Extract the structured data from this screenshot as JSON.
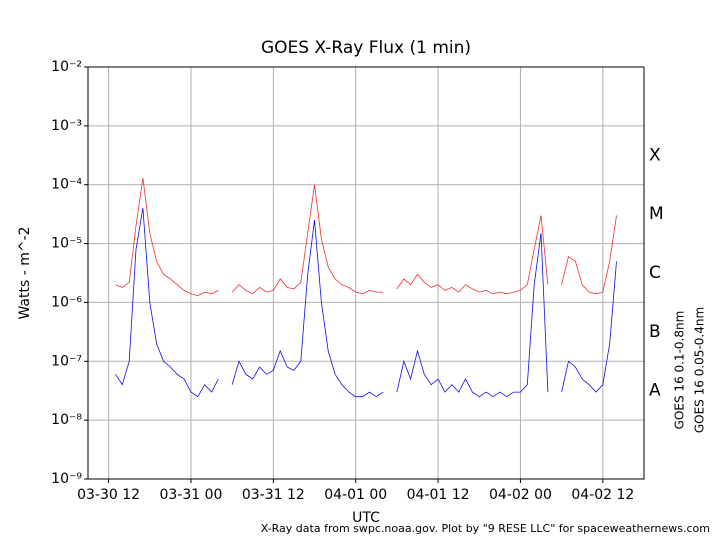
{
  "chart_data": {
    "type": "line",
    "title": "GOES X-Ray Flux (1 min)",
    "x_label": "UTC",
    "y_label": "Watts - m^-2",
    "credit": "X-Ray data from swpc.noaa.gov. Plot by \"9 RESE LLC\" for spaceweathernews.com",
    "log_y": true,
    "grid": true,
    "xlim": [
      "03-30 09",
      "04-02 18"
    ],
    "xticks": [
      "03-30 12",
      "03-31 00",
      "03-31 12",
      "04-01 00",
      "04-01 12",
      "04-02 00",
      "04-02 12"
    ],
    "ylim": [
      1e-09,
      0.01
    ],
    "yticks": [
      {
        "value": 1e-09,
        "label": "10⁻⁹"
      },
      {
        "value": 1e-08,
        "label": "10⁻⁸"
      },
      {
        "value": 1e-07,
        "label": "10⁻⁷"
      },
      {
        "value": 1e-06,
        "label": "10⁻⁶"
      },
      {
        "value": 1e-05,
        "label": "10⁻⁵"
      },
      {
        "value": 0.0001,
        "label": "10⁻⁴"
      },
      {
        "value": 0.001,
        "label": "10⁻³"
      },
      {
        "value": 0.01,
        "label": "10⁻²"
      }
    ],
    "flare_classes": [
      {
        "label": "A",
        "value": 1e-08
      },
      {
        "label": "B",
        "value": 1e-07
      },
      {
        "label": "C",
        "value": 1e-06
      },
      {
        "label": "M",
        "value": 1e-05
      },
      {
        "label": "X",
        "value": 0.0001
      }
    ],
    "x": [
      "03-30 13",
      "03-30 14",
      "03-30 15",
      "03-30 16",
      "03-30 17",
      "03-30 18",
      "03-30 19",
      "03-30 20",
      "03-30 21",
      "03-30 22",
      "03-30 23",
      "03-31 00",
      "03-31 01",
      "03-31 02",
      "03-31 03",
      "03-31 04",
      "03-31 05",
      "03-31 06",
      "03-31 07",
      "03-31 08",
      "03-31 09",
      "03-31 10",
      "03-31 11",
      "03-31 12",
      "03-31 13",
      "03-31 14",
      "03-31 15",
      "03-31 16",
      "03-31 17",
      "03-31 18",
      "03-31 19",
      "03-31 20",
      "03-31 21",
      "03-31 22",
      "03-31 23",
      "04-01 00",
      "04-01 01",
      "04-01 02",
      "04-01 03",
      "04-01 04",
      "04-01 05",
      "04-01 06",
      "04-01 07",
      "04-01 08",
      "04-01 09",
      "04-01 10",
      "04-01 11",
      "04-01 12",
      "04-01 13",
      "04-01 14",
      "04-01 15",
      "04-01 16",
      "04-01 17",
      "04-01 18",
      "04-01 19",
      "04-01 20",
      "04-01 21",
      "04-01 22",
      "04-01 23",
      "04-02 00",
      "04-02 01",
      "04-02 02",
      "04-02 03",
      "04-02 04",
      "04-02 05",
      "04-02 06",
      "04-02 07",
      "04-02 08",
      "04-02 09",
      "04-02 10",
      "04-02 11",
      "04-02 12",
      "04-02 13",
      "04-02 14"
    ],
    "series": [
      {
        "name": "GOES 16 0.1-0.8nm",
        "color": "#f03030",
        "values": [
          2e-06,
          1.8e-06,
          2.2e-06,
          2e-05,
          0.00013,
          1.5e-05,
          5e-06,
          3e-06,
          2.5e-06,
          2e-06,
          1.6e-06,
          1.4e-06,
          1.3e-06,
          1.5e-06,
          1.4e-06,
          1.6e-06,
          null,
          1.5e-06,
          2e-06,
          1.6e-06,
          1.4e-06,
          1.8e-06,
          1.5e-06,
          1.6e-06,
          2.5e-06,
          1.8e-06,
          1.7e-06,
          2.2e-06,
          1.5e-05,
          0.0001,
          1.2e-05,
          4e-06,
          2.5e-06,
          2e-06,
          1.8e-06,
          1.5e-06,
          1.4e-06,
          1.6e-06,
          1.5e-06,
          1.5e-06,
          null,
          1.7e-06,
          2.5e-06,
          2e-06,
          3e-06,
          2.2e-06,
          1.8e-06,
          2e-06,
          1.6e-06,
          1.8e-06,
          1.5e-06,
          2e-06,
          1.7e-06,
          1.5e-06,
          1.6e-06,
          1.4e-06,
          1.5e-06,
          1.4e-06,
          1.5e-06,
          1.6e-06,
          2e-06,
          8e-06,
          3e-05,
          2e-06,
          null,
          2e-06,
          6e-06,
          5e-06,
          2e-06,
          1.5e-06,
          1.4e-06,
          1.5e-06,
          5e-06,
          3e-05
        ]
      },
      {
        "name": "GOES 16 0.05-0.4nm",
        "color": "#1010e0",
        "values": [
          6e-08,
          4e-08,
          1e-07,
          8e-06,
          4e-05,
          1e-06,
          2e-07,
          1e-07,
          8e-08,
          6e-08,
          5e-08,
          3e-08,
          2.5e-08,
          4e-08,
          3e-08,
          5e-08,
          null,
          4e-08,
          1e-07,
          6e-08,
          5e-08,
          8e-08,
          6e-08,
          7e-08,
          1.5e-07,
          8e-08,
          7e-08,
          1e-07,
          3e-06,
          2.5e-05,
          1e-06,
          1.5e-07,
          6e-08,
          4e-08,
          3e-08,
          2.5e-08,
          2.5e-08,
          3e-08,
          2.5e-08,
          3e-08,
          null,
          3e-08,
          1e-07,
          5e-08,
          1.5e-07,
          6e-08,
          4e-08,
          5e-08,
          3e-08,
          4e-08,
          3e-08,
          5e-08,
          3e-08,
          2.5e-08,
          3e-08,
          2.5e-08,
          3e-08,
          2.5e-08,
          3e-08,
          3e-08,
          4e-08,
          2e-06,
          1.5e-05,
          3e-08,
          null,
          3e-08,
          1e-07,
          8e-08,
          5e-08,
          4e-08,
          3e-08,
          4e-08,
          2e-07,
          5e-06
        ]
      }
    ]
  }
}
